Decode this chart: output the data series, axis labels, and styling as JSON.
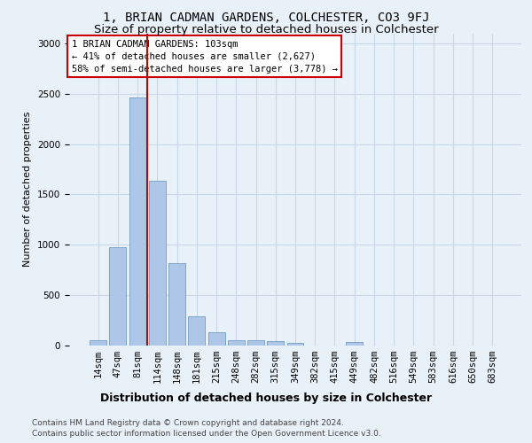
{
  "title": "1, BRIAN CADMAN GARDENS, COLCHESTER, CO3 9FJ",
  "subtitle": "Size of property relative to detached houses in Colchester",
  "xlabel": "Distribution of detached houses by size in Colchester",
  "ylabel": "Number of detached properties",
  "categories": [
    "14sqm",
    "47sqm",
    "81sqm",
    "114sqm",
    "148sqm",
    "181sqm",
    "215sqm",
    "248sqm",
    "282sqm",
    "315sqm",
    "349sqm",
    "382sqm",
    "415sqm",
    "449sqm",
    "482sqm",
    "516sqm",
    "549sqm",
    "583sqm",
    "616sqm",
    "650sqm",
    "683sqm"
  ],
  "values": [
    55,
    980,
    2460,
    1640,
    820,
    290,
    130,
    55,
    55,
    40,
    25,
    0,
    0,
    35,
    0,
    0,
    0,
    0,
    0,
    0,
    0
  ],
  "bar_color": "#aec6e8",
  "bar_edge_color": "#6090b8",
  "grid_color": "#c8d8e8",
  "background_color": "#e8f0f8",
  "vline_color": "#cc0000",
  "annotation_text": "1 BRIAN CADMAN GARDENS: 103sqm\n← 41% of detached houses are smaller (2,627)\n58% of semi-detached houses are larger (3,778) →",
  "annotation_box_color": "#ffffff",
  "annotation_box_edge": "#cc0000",
  "footer_line1": "Contains HM Land Registry data © Crown copyright and database right 2024.",
  "footer_line2": "Contains public sector information licensed under the Open Government Licence v3.0.",
  "ylim": [
    0,
    3100
  ],
  "title_fontsize": 10,
  "subtitle_fontsize": 9.5,
  "xlabel_fontsize": 9,
  "ylabel_fontsize": 8,
  "tick_fontsize": 7.5,
  "annotation_fontsize": 7.5,
  "footer_fontsize": 6.5,
  "vline_bar_index": 2
}
